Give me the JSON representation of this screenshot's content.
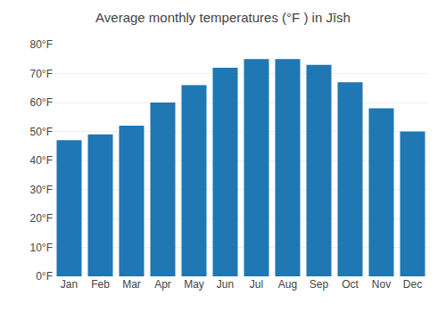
{
  "chart_data": {
    "type": "bar",
    "title": "Average monthly temperatures (°F ) in Jīsh",
    "categories": [
      "Jan",
      "Feb",
      "Mar",
      "Apr",
      "May",
      "Jun",
      "Jul",
      "Aug",
      "Sep",
      "Oct",
      "Nov",
      "Dec"
    ],
    "values": [
      47,
      49,
      52,
      60,
      66,
      72,
      75,
      75,
      73,
      67,
      58,
      50
    ],
    "ylim": [
      0,
      80
    ],
    "yticks": [
      {
        "value": 0,
        "label": "0°F"
      },
      {
        "value": 10,
        "label": "10°F"
      },
      {
        "value": 20,
        "label": "20°F"
      },
      {
        "value": 30,
        "label": "30°F"
      },
      {
        "value": 40,
        "label": "40°F"
      },
      {
        "value": 50,
        "label": "50°F"
      },
      {
        "value": 60,
        "label": "60°F"
      },
      {
        "value": 70,
        "label": "70°F"
      },
      {
        "value": 80,
        "label": "80°F"
      }
    ],
    "grid": true
  }
}
